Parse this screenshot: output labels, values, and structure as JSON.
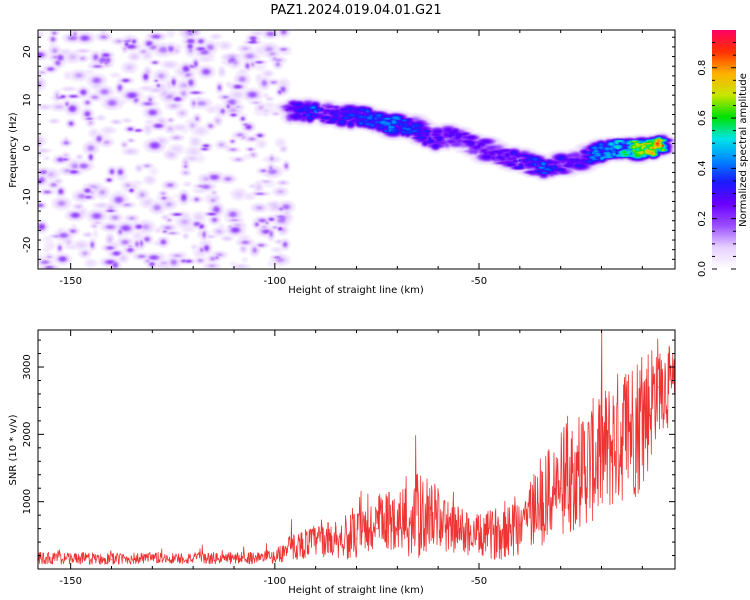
{
  "figure": {
    "title": "PAZ1.2024.019.04.01.G21"
  },
  "chart_data": [
    {
      "type": "heatmap",
      "xlabel": "Height of straight line (km)",
      "ylabel": "Frequency (Hz)",
      "xlim": [
        -158,
        -2
      ],
      "ylim": [
        -25,
        24.5
      ],
      "xticks": [
        -150,
        -100,
        -50
      ],
      "yticks": [
        20,
        10,
        0,
        -10,
        -20
      ],
      "colorbar": {
        "label": "Normalized spectral amplitude",
        "range": [
          0.0,
          0.95
        ],
        "ticks": [
          0.0,
          0.2,
          0.4,
          0.6,
          0.8
        ],
        "colormap": [
          "#ffffff",
          "#e6d0ff",
          "#9a4dff",
          "#6a00ff",
          "#1a1aff",
          "#0088ff",
          "#00e5e5",
          "#00e000",
          "#c8e600",
          "#ffb000",
          "#ff3000",
          "#ff0066"
        ]
      },
      "noise_region": {
        "x_range": [
          -158,
          -97
        ],
        "f_range": [
          -25,
          24.5
        ]
      },
      "ridge": [
        {
          "x": -97,
          "f": 8.0,
          "amp": 0.25
        },
        {
          "x": -90,
          "f": 7.5,
          "amp": 0.45
        },
        {
          "x": -85,
          "f": 7.0,
          "amp": 0.35
        },
        {
          "x": -78,
          "f": 6.5,
          "amp": 0.4
        },
        {
          "x": -72,
          "f": 5.0,
          "amp": 0.45
        },
        {
          "x": -66,
          "f": 4.5,
          "amp": 0.4
        },
        {
          "x": -62,
          "f": 2.0,
          "amp": 0.35
        },
        {
          "x": -57,
          "f": 2.5,
          "amp": 0.3
        },
        {
          "x": -50,
          "f": 0.5,
          "amp": 0.3
        },
        {
          "x": -45,
          "f": -1.5,
          "amp": 0.3
        },
        {
          "x": -40,
          "f": -2.5,
          "amp": 0.35
        },
        {
          "x": -35,
          "f": -4.0,
          "amp": 0.45
        },
        {
          "x": -28,
          "f": -3.0,
          "amp": 0.3
        },
        {
          "x": -22,
          "f": -1.0,
          "amp": 0.45
        },
        {
          "x": -16,
          "f": 0.0,
          "amp": 0.55
        },
        {
          "x": -10,
          "f": 0.0,
          "amp": 0.75
        },
        {
          "x": -5,
          "f": 0.5,
          "amp": 0.9
        }
      ]
    },
    {
      "type": "line",
      "xlabel": "Height of straight line (km)",
      "ylabel": "SNR (10 * v/v)",
      "xlim": [
        -158,
        -2
      ],
      "ylim": [
        0,
        3550
      ],
      "xticks": [
        -150,
        -100,
        -50
      ],
      "yticks": [
        1000,
        2000,
        3000
      ],
      "series": [
        {
          "color": "#ee3333",
          "x": [
            -158,
            -150,
            -140,
            -130,
            -120,
            -110,
            -100,
            -96,
            -90,
            -85,
            -80,
            -75,
            -70,
            -66,
            -62,
            -58,
            -55,
            -50,
            -45,
            -40,
            -35,
            -30,
            -25,
            -20,
            -15,
            -10,
            -6,
            -2
          ],
          "y": [
            150,
            150,
            140,
            150,
            150,
            150,
            170,
            300,
            400,
            420,
            450,
            600,
            700,
            650,
            800,
            600,
            550,
            450,
            500,
            650,
            900,
            1200,
            1400,
            1600,
            1900,
            2100,
            2700,
            2600
          ],
          "spread": [
            120,
            110,
            110,
            110,
            110,
            110,
            120,
            250,
            300,
            350,
            450,
            600,
            550,
            900,
            650,
            500,
            450,
            400,
            500,
            650,
            800,
            1000,
            1100,
            1200,
            1300,
            1400,
            900,
            700
          ]
        }
      ]
    }
  ]
}
